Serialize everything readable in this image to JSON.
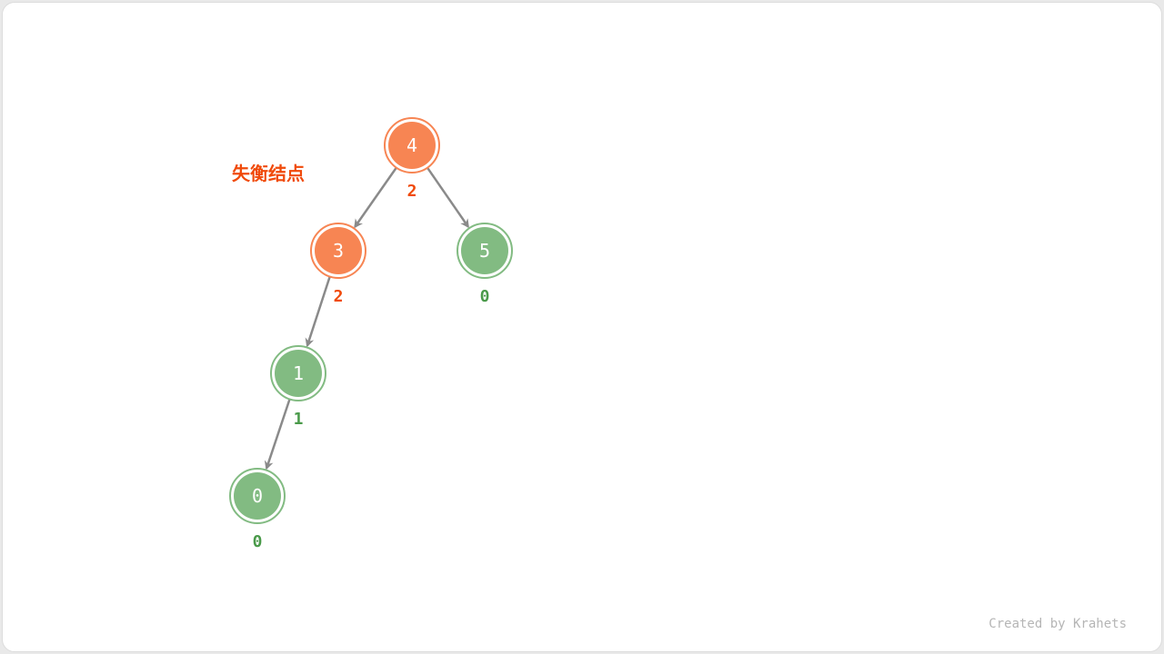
{
  "label": "失衡结点",
  "credit": "Created by Krahets",
  "colors": {
    "unbalanced": "#f78553",
    "unbalanced_text": "#f04a0a",
    "balanced": "#82bb82",
    "balanced_text": "#4a9a4a",
    "edge": "#8a8a8a"
  },
  "nodes": [
    {
      "id": "4",
      "value": "4",
      "balance": "2",
      "status": "unbalanced"
    },
    {
      "id": "3",
      "value": "3",
      "balance": "2",
      "status": "unbalanced"
    },
    {
      "id": "5",
      "value": "5",
      "balance": "0",
      "status": "balanced"
    },
    {
      "id": "1",
      "value": "1",
      "balance": "1",
      "status": "balanced"
    },
    {
      "id": "0",
      "value": "0",
      "balance": "0",
      "status": "balanced"
    }
  ],
  "edges": [
    [
      "4",
      "3"
    ],
    [
      "4",
      "5"
    ],
    [
      "3",
      "1"
    ],
    [
      "1",
      "0"
    ]
  ]
}
